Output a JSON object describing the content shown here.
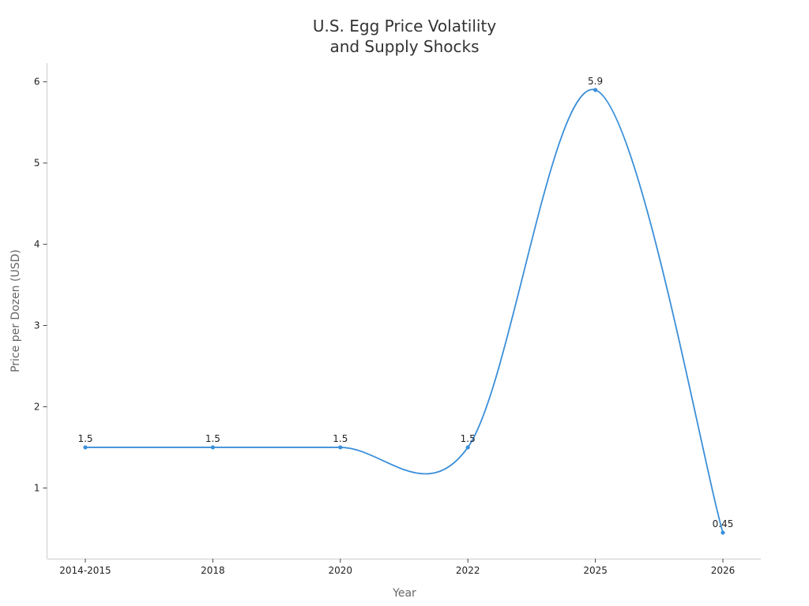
{
  "chart_data": {
    "type": "line",
    "title": [
      "U.S. Egg Price Volatility",
      "and Supply Shocks"
    ],
    "xlabel": "Year",
    "ylabel": "Price per Dozen (USD)",
    "categories": [
      "2014-2015",
      "2018",
      "2020",
      "2022",
      "2025",
      "2026"
    ],
    "values": [
      1.5,
      1.5,
      1.5,
      1.5,
      5.9,
      0.45
    ],
    "data_labels": [
      "1.5",
      "1.5",
      "1.5",
      "1.5",
      "5.9",
      "0.45"
    ],
    "yticks": [
      1,
      2,
      3,
      4,
      5,
      6
    ],
    "ylim": [
      0.13,
      6.23
    ],
    "line_color": "#3a8fd9",
    "smooth": true,
    "grid": false,
    "legend": "none"
  }
}
